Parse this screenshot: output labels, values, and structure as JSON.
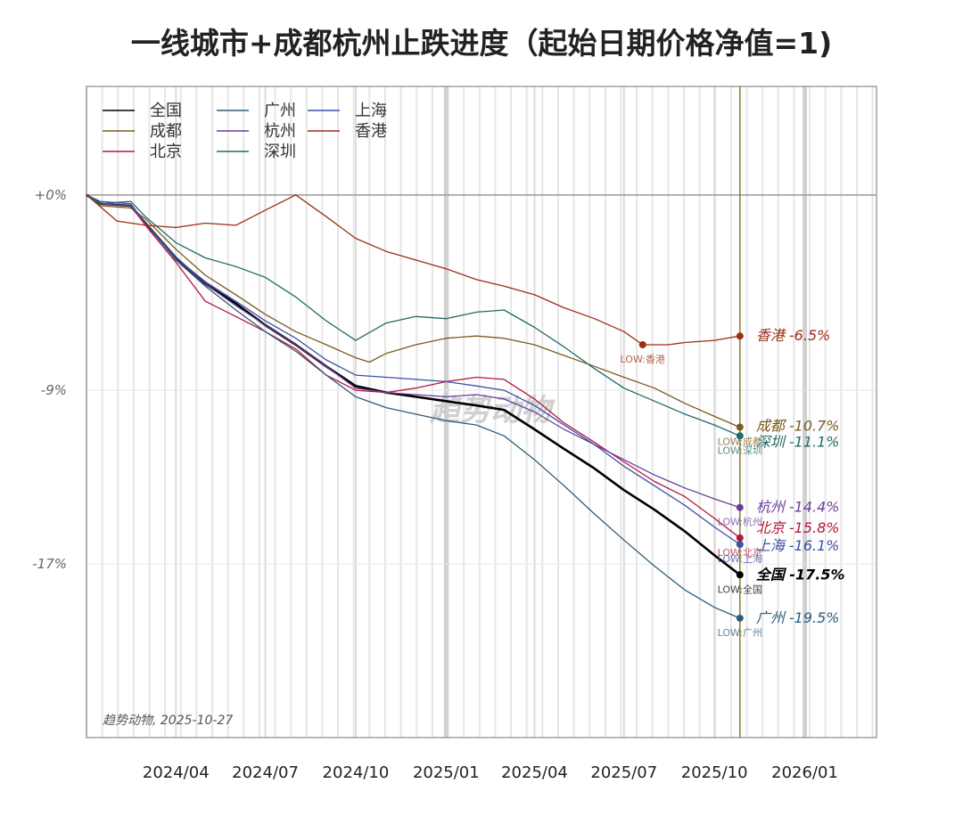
{
  "chart_data": {
    "type": "line",
    "title": "一线城市+成都杭州止跌进度（起始日期价格净值=1)",
    "ylabel": "",
    "xlabel": "",
    "y_ticks": [
      {
        "value": 0,
        "label": "+0%"
      },
      {
        "value": -9,
        "label": "-9%"
      },
      {
        "value": -17,
        "label": "-17%"
      }
    ],
    "ylim": [
      -25,
      5
    ],
    "x_ticks": [
      "2024/04",
      "2024/07",
      "2024/10",
      "2025/01",
      "2025/04",
      "2025/07",
      "2025/10",
      "2026/01"
    ],
    "x_range": [
      "2024-01-01",
      "2026-03-15"
    ],
    "current_date": "2025-10-27",
    "watermark": "趋势动物",
    "credit": "趋势动物, 2025-10-27",
    "legend_placement": "top-left",
    "series": [
      {
        "name": "全国",
        "color": "#000000",
        "end_label": "全国 -17.5%",
        "low_label": "LOW:全国",
        "bold": true,
        "points": [
          [
            "2024-01-01",
            0
          ],
          [
            "2024-01-15",
            -0.4
          ],
          [
            "2024-02-15",
            -0.5
          ],
          [
            "2024-03-01",
            -1.3
          ],
          [
            "2024-04-01",
            -2.9
          ],
          [
            "2024-05-01",
            -4.1
          ],
          [
            "2024-06-01",
            -5.0
          ],
          [
            "2024-07-01",
            -6.0
          ],
          [
            "2024-08-01",
            -6.9
          ],
          [
            "2024-09-01",
            -7.9
          ],
          [
            "2024-10-01",
            -8.8
          ],
          [
            "2024-11-01",
            -9.1
          ],
          [
            "2024-12-01",
            -9.3
          ],
          [
            "2025-01-01",
            -9.5
          ],
          [
            "2025-02-01",
            -9.7
          ],
          [
            "2025-03-01",
            -9.9
          ],
          [
            "2025-04-01",
            -10.8
          ],
          [
            "2025-05-01",
            -11.7
          ],
          [
            "2025-06-01",
            -12.6
          ],
          [
            "2025-07-01",
            -13.6
          ],
          [
            "2025-08-01",
            -14.5
          ],
          [
            "2025-09-01",
            -15.5
          ],
          [
            "2025-10-01",
            -16.6
          ],
          [
            "2025-10-27",
            -17.5
          ]
        ]
      },
      {
        "name": "成都",
        "color": "#7a5a1e",
        "end_label": "成都 -10.7%",
        "low_label": "LOW:成都",
        "points": [
          [
            "2024-01-01",
            0
          ],
          [
            "2024-01-15",
            -0.5
          ],
          [
            "2024-02-15",
            -0.6
          ],
          [
            "2024-03-01",
            -1.1
          ],
          [
            "2024-04-01",
            -2.5
          ],
          [
            "2024-05-01",
            -3.7
          ],
          [
            "2024-06-01",
            -4.6
          ],
          [
            "2024-07-01",
            -5.5
          ],
          [
            "2024-08-01",
            -6.3
          ],
          [
            "2024-09-01",
            -6.9
          ],
          [
            "2024-10-01",
            -7.5
          ],
          [
            "2024-10-15",
            -7.7
          ],
          [
            "2024-11-01",
            -7.3
          ],
          [
            "2024-12-01",
            -6.9
          ],
          [
            "2025-01-01",
            -6.6
          ],
          [
            "2025-02-01",
            -6.5
          ],
          [
            "2025-03-01",
            -6.6
          ],
          [
            "2025-04-01",
            -6.9
          ],
          [
            "2025-05-01",
            -7.4
          ],
          [
            "2025-06-01",
            -7.9
          ],
          [
            "2025-07-01",
            -8.4
          ],
          [
            "2025-08-01",
            -8.9
          ],
          [
            "2025-09-01",
            -9.6
          ],
          [
            "2025-10-01",
            -10.2
          ],
          [
            "2025-10-27",
            -10.7
          ]
        ]
      },
      {
        "name": "北京",
        "color": "#b5173a",
        "end_label": "北京 -15.8%",
        "low_label": "LOW:北京",
        "points": [
          [
            "2024-01-01",
            0
          ],
          [
            "2024-01-15",
            -0.4
          ],
          [
            "2024-02-15",
            -0.5
          ],
          [
            "2024-03-01",
            -1.4
          ],
          [
            "2024-04-01",
            -3.1
          ],
          [
            "2024-05-01",
            -4.9
          ],
          [
            "2024-06-01",
            -5.6
          ],
          [
            "2024-07-01",
            -6.3
          ],
          [
            "2024-08-01",
            -7.1
          ],
          [
            "2024-09-01",
            -8.3
          ],
          [
            "2024-10-01",
            -9.0
          ],
          [
            "2024-11-01",
            -9.1
          ],
          [
            "2024-12-01",
            -8.9
          ],
          [
            "2025-01-01",
            -8.6
          ],
          [
            "2025-02-01",
            -8.4
          ],
          [
            "2025-03-01",
            -8.5
          ],
          [
            "2025-04-01",
            -9.4
          ],
          [
            "2025-05-01",
            -10.5
          ],
          [
            "2025-06-01",
            -11.4
          ],
          [
            "2025-07-01",
            -12.3
          ],
          [
            "2025-08-01",
            -13.2
          ],
          [
            "2025-09-01",
            -13.9
          ],
          [
            "2025-10-01",
            -14.9
          ],
          [
            "2025-10-27",
            -15.8
          ]
        ]
      },
      {
        "name": "广州",
        "color": "#2e5c7a",
        "end_label": "广州 -19.5%",
        "low_label": "LOW:广州",
        "points": [
          [
            "2024-01-01",
            0
          ],
          [
            "2024-01-15",
            -0.4
          ],
          [
            "2024-02-15",
            -0.5
          ],
          [
            "2024-03-01",
            -1.3
          ],
          [
            "2024-04-01",
            -3.0
          ],
          [
            "2024-05-01",
            -4.2
          ],
          [
            "2024-06-01",
            -5.3
          ],
          [
            "2024-07-01",
            -6.3
          ],
          [
            "2024-08-01",
            -7.2
          ],
          [
            "2024-09-01",
            -8.3
          ],
          [
            "2024-10-01",
            -9.3
          ],
          [
            "2024-11-01",
            -9.8
          ],
          [
            "2024-12-01",
            -10.1
          ],
          [
            "2025-01-01",
            -10.4
          ],
          [
            "2025-02-01",
            -10.6
          ],
          [
            "2025-03-01",
            -11.1
          ],
          [
            "2025-04-01",
            -12.2
          ],
          [
            "2025-05-01",
            -13.4
          ],
          [
            "2025-06-01",
            -14.7
          ],
          [
            "2025-07-01",
            -15.9
          ],
          [
            "2025-08-01",
            -17.1
          ],
          [
            "2025-09-01",
            -18.2
          ],
          [
            "2025-10-01",
            -19.0
          ],
          [
            "2025-10-27",
            -19.5
          ]
        ]
      },
      {
        "name": "杭州",
        "color": "#6a3d9a",
        "end_label": "杭州 -14.4%",
        "low_label": "LOW:杭州",
        "points": [
          [
            "2024-01-01",
            0
          ],
          [
            "2024-01-15",
            -0.4
          ],
          [
            "2024-02-15",
            -0.5
          ],
          [
            "2024-03-01",
            -1.3
          ],
          [
            "2024-04-01",
            -2.9
          ],
          [
            "2024-05-01",
            -4.1
          ],
          [
            "2024-06-01",
            -5.1
          ],
          [
            "2024-07-01",
            -6.0
          ],
          [
            "2024-08-01",
            -6.9
          ],
          [
            "2024-09-01",
            -7.9
          ],
          [
            "2024-10-01",
            -8.9
          ],
          [
            "2024-11-01",
            -9.1
          ],
          [
            "2024-12-01",
            -9.2
          ],
          [
            "2025-01-01",
            -9.3
          ],
          [
            "2025-02-01",
            -9.2
          ],
          [
            "2025-03-01",
            -9.4
          ],
          [
            "2025-04-01",
            -10.0
          ],
          [
            "2025-05-01",
            -10.8
          ],
          [
            "2025-06-01",
            -11.5
          ],
          [
            "2025-07-01",
            -12.2
          ],
          [
            "2025-08-01",
            -12.9
          ],
          [
            "2025-09-01",
            -13.5
          ],
          [
            "2025-10-01",
            -14.0
          ],
          [
            "2025-10-27",
            -14.4
          ]
        ]
      },
      {
        "name": "深圳",
        "color": "#1f6b66",
        "end_label": "深圳 -11.1%",
        "low_label": "LOW:深圳",
        "points": [
          [
            "2024-01-01",
            0
          ],
          [
            "2024-01-15",
            -0.4
          ],
          [
            "2024-02-15",
            -0.3
          ],
          [
            "2024-03-01",
            -1.0
          ],
          [
            "2024-04-01",
            -2.2
          ],
          [
            "2024-05-01",
            -2.9
          ],
          [
            "2024-06-01",
            -3.3
          ],
          [
            "2024-07-01",
            -3.8
          ],
          [
            "2024-08-01",
            -4.7
          ],
          [
            "2024-09-01",
            -5.8
          ],
          [
            "2024-10-01",
            -6.7
          ],
          [
            "2024-11-01",
            -5.9
          ],
          [
            "2024-12-01",
            -5.6
          ],
          [
            "2025-01-01",
            -5.7
          ],
          [
            "2025-02-01",
            -5.4
          ],
          [
            "2025-03-01",
            -5.3
          ],
          [
            "2025-04-01",
            -6.1
          ],
          [
            "2025-05-01",
            -7.0
          ],
          [
            "2025-06-01",
            -8.0
          ],
          [
            "2025-07-01",
            -8.9
          ],
          [
            "2025-08-01",
            -9.5
          ],
          [
            "2025-09-01",
            -10.1
          ],
          [
            "2025-10-01",
            -10.6
          ],
          [
            "2025-10-27",
            -11.1
          ]
        ]
      },
      {
        "name": "上海",
        "color": "#3c4fa6",
        "end_label": "上海 -16.1%",
        "low_label": "LOW:上海",
        "points": [
          [
            "2024-01-01",
            0
          ],
          [
            "2024-01-15",
            -0.3
          ],
          [
            "2024-02-15",
            -0.4
          ],
          [
            "2024-03-01",
            -1.3
          ],
          [
            "2024-04-01",
            -2.9
          ],
          [
            "2024-05-01",
            -4.0
          ],
          [
            "2024-06-01",
            -4.9
          ],
          [
            "2024-07-01",
            -5.8
          ],
          [
            "2024-08-01",
            -6.6
          ],
          [
            "2024-09-01",
            -7.6
          ],
          [
            "2024-10-01",
            -8.3
          ],
          [
            "2024-11-01",
            -8.4
          ],
          [
            "2024-12-01",
            -8.5
          ],
          [
            "2025-01-01",
            -8.6
          ],
          [
            "2025-02-01",
            -8.8
          ],
          [
            "2025-03-01",
            -9.0
          ],
          [
            "2025-04-01",
            -9.7
          ],
          [
            "2025-05-01",
            -10.6
          ],
          [
            "2025-06-01",
            -11.5
          ],
          [
            "2025-07-01",
            -12.5
          ],
          [
            "2025-08-01",
            -13.4
          ],
          [
            "2025-09-01",
            -14.3
          ],
          [
            "2025-10-01",
            -15.3
          ],
          [
            "2025-10-27",
            -16.1
          ]
        ]
      },
      {
        "name": "香港",
        "color": "#9c2e14",
        "end_label": "香港 -6.5%",
        "low_label": "LOW:香港",
        "points": [
          [
            "2024-01-01",
            0
          ],
          [
            "2024-02-01",
            -1.2
          ],
          [
            "2024-03-01",
            -1.4
          ],
          [
            "2024-04-01",
            -1.5
          ],
          [
            "2024-05-01",
            -1.3
          ],
          [
            "2024-06-01",
            -1.4
          ],
          [
            "2024-07-01",
            -0.7
          ],
          [
            "2024-08-01",
            0
          ],
          [
            "2024-09-01",
            -1.0
          ],
          [
            "2024-10-01",
            -2.0
          ],
          [
            "2024-11-01",
            -2.6
          ],
          [
            "2024-12-01",
            -3.0
          ],
          [
            "2025-01-01",
            -3.4
          ],
          [
            "2025-02-01",
            -3.9
          ],
          [
            "2025-03-01",
            -4.2
          ],
          [
            "2025-04-01",
            -4.6
          ],
          [
            "2025-05-01",
            -5.2
          ],
          [
            "2025-06-01",
            -5.7
          ],
          [
            "2025-07-01",
            -6.3
          ],
          [
            "2025-07-20",
            -6.9
          ],
          [
            "2025-08-15",
            -6.9
          ],
          [
            "2025-09-01",
            -6.8
          ],
          [
            "2025-10-01",
            -6.7
          ],
          [
            "2025-10-27",
            -6.5
          ]
        ]
      }
    ]
  }
}
